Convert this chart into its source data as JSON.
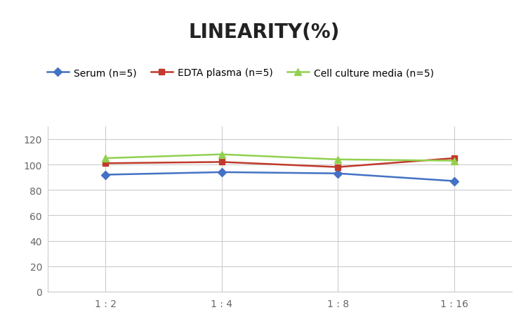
{
  "title": "LINEARITY(%)",
  "x_labels": [
    "1 : 2",
    "1 : 4",
    "1 : 8",
    "1 : 16"
  ],
  "x_positions": [
    0,
    1,
    2,
    3
  ],
  "series": [
    {
      "label": "Serum (n=5)",
      "values": [
        92,
        94,
        93,
        87
      ],
      "color": "#4472C4",
      "marker": "D",
      "marker_size": 6,
      "linewidth": 1.8
    },
    {
      "label": "EDTA plasma (n=5)",
      "values": [
        101,
        102,
        98,
        105
      ],
      "color": "#C0392B",
      "marker": "s",
      "marker_size": 6,
      "linewidth": 1.8
    },
    {
      "label": "Cell culture media (n=5)",
      "values": [
        105,
        108,
        104,
        103
      ],
      "color": "#92D050",
      "marker": "^",
      "marker_size": 7,
      "linewidth": 1.8
    }
  ],
  "ylim": [
    0,
    130
  ],
  "yticks": [
    0,
    20,
    40,
    60,
    80,
    100,
    120
  ],
  "grid_color": "#CCCCCC",
  "background_color": "#FFFFFF",
  "title_fontsize": 20,
  "title_fontweight": "bold",
  "legend_fontsize": 10,
  "tick_fontsize": 10,
  "tick_color": "#666666"
}
